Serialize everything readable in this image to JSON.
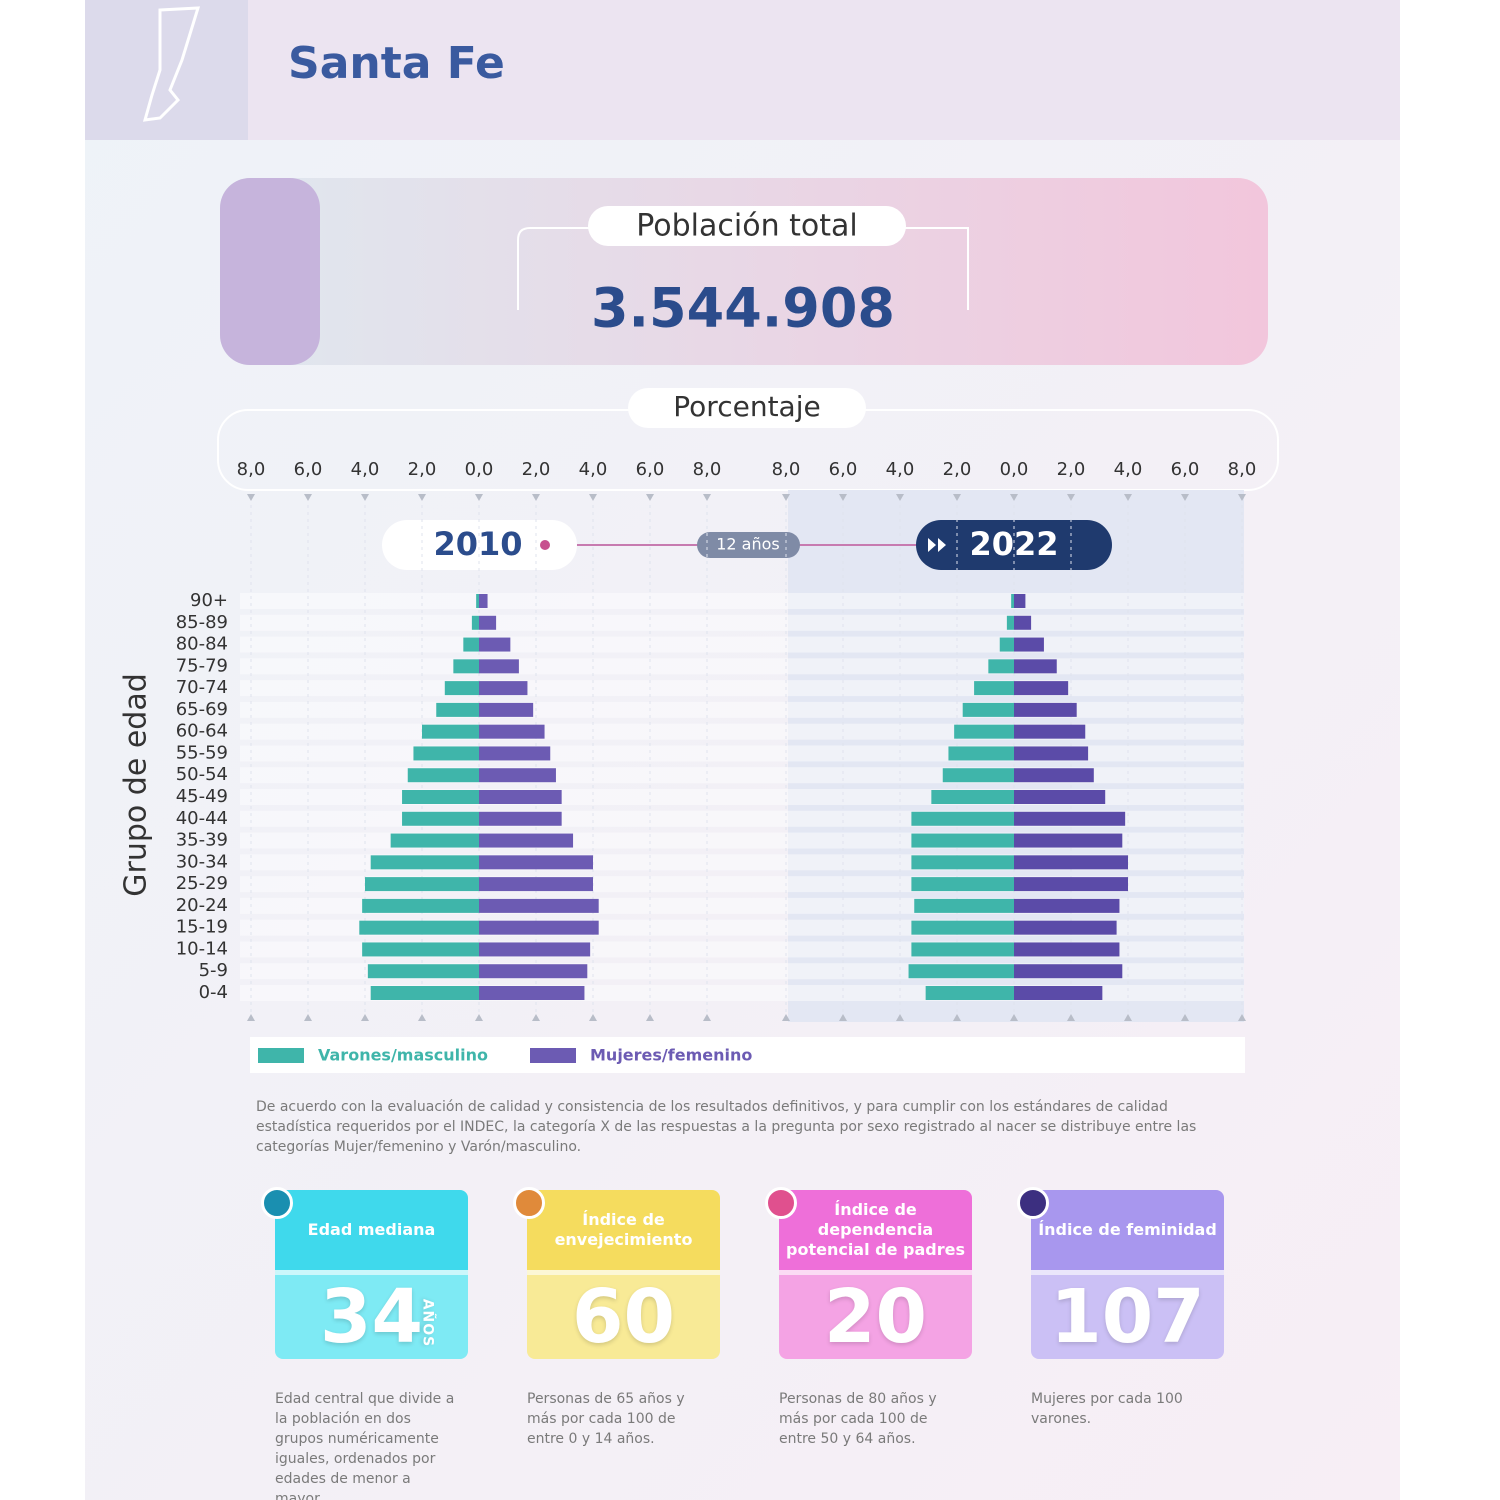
{
  "header": {
    "title": "Santa Fe"
  },
  "total": {
    "label": "Población total",
    "value": "3.544.908"
  },
  "axis_title": "Porcentaje",
  "y_label": "Grupo de edad",
  "interval": "12 años",
  "chart_data": [
    {
      "type": "pyramid",
      "title": "2010",
      "categories": [
        "90+",
        "85-89",
        "80-84",
        "75-79",
        "70-74",
        "65-69",
        "60-64",
        "55-59",
        "50-54",
        "45-49",
        "40-44",
        "35-39",
        "30-34",
        "25-29",
        "20-24",
        "15-19",
        "10-14",
        "5-9",
        "0-4"
      ],
      "xlim": [
        -8,
        8
      ],
      "xticks": [
        {
          "value": -8,
          "label": "8,0"
        },
        {
          "value": -6,
          "label": "6,0"
        },
        {
          "value": -4,
          "label": "4,0"
        },
        {
          "value": -2,
          "label": "2,0"
        },
        {
          "value": 0,
          "label": "0,0"
        },
        {
          "value": 2,
          "label": "2,0"
        },
        {
          "value": 4,
          "label": "4,0"
        },
        {
          "value": 6,
          "label": "6,0"
        },
        {
          "value": 8,
          "label": "8,0"
        }
      ],
      "series": [
        {
          "name": "Varones/masculino",
          "color": "#3fb5aa",
          "values": [
            0.1,
            0.25,
            0.55,
            0.9,
            1.2,
            1.5,
            2.0,
            2.3,
            2.5,
            2.7,
            2.7,
            3.1,
            3.8,
            4.0,
            4.1,
            4.2,
            4.1,
            3.9,
            3.8
          ]
        },
        {
          "name": "Mujeres/femenino",
          "color": "#6c5bb3",
          "values": [
            0.3,
            0.6,
            1.1,
            1.4,
            1.7,
            1.9,
            2.3,
            2.5,
            2.7,
            2.9,
            2.9,
            3.3,
            4.0,
            4.0,
            4.2,
            4.2,
            3.9,
            3.8,
            3.7
          ]
        }
      ]
    },
    {
      "type": "pyramid",
      "title": "2022",
      "xlim": [
        -8,
        8
      ],
      "xticks": [
        {
          "value": -8,
          "label": "8,0"
        },
        {
          "value": -6,
          "label": "6,0"
        },
        {
          "value": -4,
          "label": "4,0"
        },
        {
          "value": -2,
          "label": "2,0"
        },
        {
          "value": 0,
          "label": "0,0"
        },
        {
          "value": 2,
          "label": "2,0"
        },
        {
          "value": 4,
          "label": "4,0"
        },
        {
          "value": 6,
          "label": "6,0"
        },
        {
          "value": 8,
          "label": "8,0"
        }
      ],
      "series": [
        {
          "color": "#3fb5aa",
          "values": [
            0.1,
            0.25,
            0.5,
            0.9,
            1.4,
            1.8,
            2.1,
            2.3,
            2.5,
            2.9,
            3.6,
            3.6,
            3.6,
            3.6,
            3.5,
            3.6,
            3.6,
            3.7,
            3.1
          ]
        },
        {
          "color": "#5b4ba8",
          "values": [
            0.4,
            0.6,
            1.05,
            1.5,
            1.9,
            2.2,
            2.5,
            2.6,
            2.8,
            3.2,
            3.9,
            3.8,
            4.0,
            4.0,
            3.7,
            3.6,
            3.7,
            3.8,
            3.1
          ]
        }
      ]
    }
  ],
  "footnote": "De acuerdo con la evaluación de calidad y consistencia de los resultados definitivos, y para cumplir con los estándares de calidad estadística requeridos por el INDEC, la categoría X de las respuestas a la pregunta por sexo registrado al nacer se distribuye entre las categorías Mujer/femenino y Varón/masculino.",
  "indicators": [
    {
      "title": "Edad mediana",
      "value": "34",
      "unit": "AÑOS",
      "description": "Edad central que divide a la población en dos grupos numéricamente iguales, ordenados por edades de menor a mayor."
    },
    {
      "title": "Índice de envejecimiento",
      "value": "60",
      "description": "Personas de 65 años y más por cada 100 de entre 0 y 14 años."
    },
    {
      "title": "Índice de dependencia potencial de padres",
      "value": "20",
      "description": "Personas de 80 años y más por cada 100 de entre 50 y 64 años."
    },
    {
      "title": "Índice de feminidad",
      "value": "107",
      "description": "Mujeres por cada 100 varones."
    }
  ]
}
